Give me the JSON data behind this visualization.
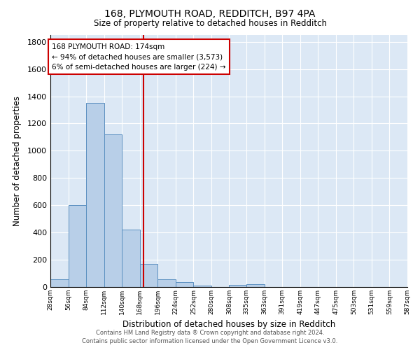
{
  "title_line1": "168, PLYMOUTH ROAD, REDDITCH, B97 4PA",
  "title_line2": "Size of property relative to detached houses in Redditch",
  "xlabel": "Distribution of detached houses by size in Redditch",
  "ylabel": "Number of detached properties",
  "annotation_line1": "168 PLYMOUTH ROAD: 174sqm",
  "annotation_line2": "← 94% of detached houses are smaller (3,573)",
  "annotation_line3": "6% of semi-detached houses are larger (224) →",
  "footer_line1": "Contains HM Land Registry data ® Crown copyright and database right 2024.",
  "footer_line2": "Contains public sector information licensed under the Open Government Licence v3.0.",
  "bins": [
    28,
    56,
    84,
    112,
    140,
    168,
    196,
    224,
    252,
    280,
    308,
    335,
    363,
    391,
    419,
    447,
    475,
    503,
    531,
    559,
    587
  ],
  "counts": [
    55,
    600,
    1350,
    1120,
    420,
    170,
    55,
    35,
    10,
    0,
    15,
    20,
    0,
    0,
    0,
    0,
    0,
    0,
    0,
    0
  ],
  "property_size": 174,
  "bar_facecolor": "#b8cfe8",
  "bar_edgecolor": "#5a8fc0",
  "vline_color": "#cc0000",
  "background_color": "#dce8f5",
  "grid_color": "#ffffff",
  "ylim": [
    0,
    1850
  ],
  "yticks": [
    0,
    200,
    400,
    600,
    800,
    1000,
    1200,
    1400,
    1600,
    1800
  ],
  "title1_fontsize": 10,
  "title2_fontsize": 8.5,
  "xlabel_fontsize": 8.5,
  "ylabel_fontsize": 8.5,
  "xtick_fontsize": 6.5,
  "ytick_fontsize": 8,
  "footer_fontsize": 6,
  "ann_fontsize": 7.5
}
